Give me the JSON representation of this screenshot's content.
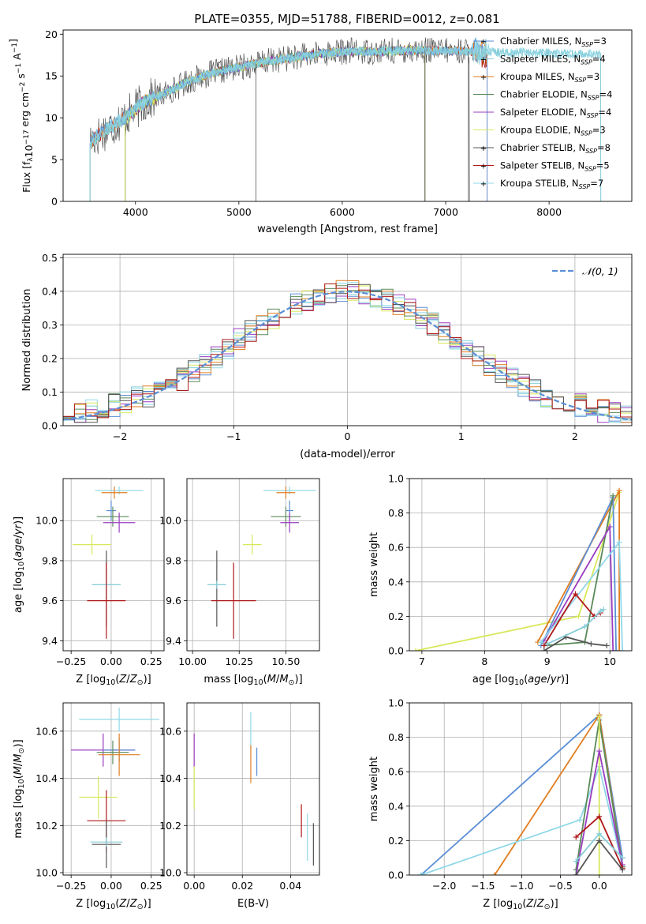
{
  "figure_title": "PLATE=0355, MJD=51788, FIBERID=0012, z=0.081",
  "colors": {
    "Chabrier MILES": "#5b8fd6",
    "Salpeter MILES": "#86cdd8",
    "Kroupa MILES": "#e07d20",
    "Chabrier ELODIE": "#5a8a5a",
    "Salpeter ELODIE": "#9a3cc0",
    "Kroupa ELODIE": "#d7e85a",
    "Chabrier STELIB": "#555555",
    "Salpeter STELIB": "#b01818",
    "Kroupa STELIB": "#8fd8e8",
    "grid": "#b0b0b0",
    "normal_curve": "#5b8fd6"
  },
  "chart_data": [
    {
      "id": "spectrum",
      "type": "line",
      "xlabel": "wavelength [Angstrom, rest frame]",
      "ylabel": "Flux [f_λ10^-17 erg cm^-2 s^-1 A^-1]",
      "xlim": [
        3300,
        8800
      ],
      "ylim": [
        0,
        20.5
      ],
      "xticks": [
        4000,
        5000,
        6000,
        7000,
        8000
      ],
      "yticks": [
        0,
        5,
        10,
        15,
        20
      ],
      "grid": false,
      "legend_position": "right",
      "legend": [
        {
          "name": "Chabrier MILES",
          "nssp": "3"
        },
        {
          "name": "Salpeter MILES",
          "nssp": "4"
        },
        {
          "name": "Kroupa MILES",
          "nssp": "3"
        },
        {
          "name": "Chabrier ELODIE",
          "nssp": "4"
        },
        {
          "name": "Salpeter ELODIE",
          "nssp": "4"
        },
        {
          "name": "Kroupa ELODIE",
          "nssp": "3"
        },
        {
          "name": "Chabrier STELIB",
          "nssp": "8"
        },
        {
          "name": "Salpeter STELIB",
          "nssp": "5"
        },
        {
          "name": "Kroupa STELIB",
          "nssp": "7"
        }
      ],
      "continuum": {
        "x": [
          3550,
          3700,
          3900,
          4100,
          4300,
          4500,
          4700,
          4900,
          5100,
          5300,
          5500,
          5700,
          5900,
          6100,
          6300,
          6500,
          6700,
          6900,
          7100,
          7300,
          7500,
          7800,
          8100,
          8400
        ],
        "y": [
          7.0,
          8.5,
          10.0,
          12.0,
          13.0,
          14.3,
          15.2,
          15.8,
          16.3,
          16.8,
          17.2,
          17.5,
          17.8,
          18.0,
          17.9,
          18.0,
          18.1,
          18.0,
          18.0,
          17.9,
          17.8,
          17.8,
          17.7,
          17.6
        ]
      }
    },
    {
      "id": "residuals",
      "type": "line",
      "xlabel": "(data-model)/error",
      "ylabel": "Normed distribution",
      "xlim": [
        -2.5,
        2.5
      ],
      "ylim": [
        0,
        0.51
      ],
      "xticks": [
        -2,
        -1,
        0,
        1,
        2
      ],
      "xticklabels": [
        "−2",
        "−1",
        "0",
        "1",
        "2"
      ],
      "yticks": [
        0.0,
        0.1,
        0.2,
        0.3,
        0.4,
        0.5
      ],
      "grid": true,
      "legend_position": "top-right",
      "normal_label": "𝒩(0, 1)",
      "bin_width": 0.1
    },
    {
      "id": "age-vs-Z",
      "type": "errorbar",
      "xlabel": "Z [log10(Z/Z⊙)]",
      "ylabel": "age [log10(age/yr)]",
      "xlim": [
        -0.3,
        0.33
      ],
      "ylim": [
        9.35,
        10.21
      ],
      "xticks": [
        -0.25,
        0.0,
        0.25
      ],
      "xticklabels": [
        "−0.25",
        "0.00",
        "0.25"
      ],
      "yticks": [
        9.4,
        9.6,
        9.8,
        10.0
      ],
      "grid": true,
      "points": [
        {
          "series": "Kroupa STELIB",
          "x": 0.05,
          "xerr": 0.15,
          "y": 10.15,
          "yerr": 0.02
        },
        {
          "series": "Kroupa MILES",
          "x": 0.02,
          "xerr": 0.08,
          "y": 10.14,
          "yerr": 0.03
        },
        {
          "series": "Chabrier MILES",
          "x": 0.0,
          "xerr": 0.03,
          "y": 10.05,
          "yerr": 0.05
        },
        {
          "series": "Chabrier ELODIE",
          "x": 0.01,
          "xerr": 0.1,
          "y": 10.02,
          "yerr": 0.05
        },
        {
          "series": "Salpeter ELODIE",
          "x": 0.05,
          "xerr": 0.1,
          "y": 9.99,
          "yerr": 0.05
        },
        {
          "series": "Kroupa ELODIE",
          "x": -0.12,
          "xerr": 0.12,
          "y": 9.88,
          "yerr": 0.05
        },
        {
          "series": "Chabrier STELIB",
          "x": -0.03,
          "xerr": 0.0,
          "y": 9.66,
          "yerr": 0.19
        },
        {
          "series": "Salpeter MILES",
          "x": -0.03,
          "xerr": 0.09,
          "y": 9.68,
          "yerr": 0.02
        },
        {
          "series": "Salpeter STELIB",
          "x": -0.03,
          "xerr": 0.12,
          "y": 9.6,
          "yerr": 0.19
        }
      ]
    },
    {
      "id": "age-vs-mass",
      "type": "errorbar",
      "xlabel": "mass [log10(M/M⊙)]",
      "xlim": [
        9.97,
        10.68
      ],
      "ylim": [
        9.35,
        10.21
      ],
      "xticks": [
        10.0,
        10.25,
        10.5
      ],
      "xticklabels": [
        "10.00",
        "10.25",
        "10.50"
      ],
      "yticks": [
        9.4,
        9.6,
        9.8,
        10.0
      ],
      "grid": true,
      "points": [
        {
          "series": "Kroupa STELIB",
          "x": 10.52,
          "xerr": 0.14,
          "y": 10.15,
          "yerr": 0.02
        },
        {
          "series": "Kroupa MILES",
          "x": 10.5,
          "xerr": 0.05,
          "y": 10.14,
          "yerr": 0.03
        },
        {
          "series": "Chabrier MILES",
          "x": 10.52,
          "xerr": 0.02,
          "y": 10.05,
          "yerr": 0.05
        },
        {
          "series": "Chabrier ELODIE",
          "x": 10.5,
          "xerr": 0.08,
          "y": 10.02,
          "yerr": 0.05
        },
        {
          "series": "Salpeter ELODIE",
          "x": 10.52,
          "xerr": 0.05,
          "y": 9.99,
          "yerr": 0.05
        },
        {
          "series": "Kroupa ELODIE",
          "x": 10.32,
          "xerr": 0.05,
          "y": 9.88,
          "yerr": 0.05
        },
        {
          "series": "Chabrier STELIB",
          "x": 10.13,
          "xerr": 0.0,
          "y": 9.66,
          "yerr": 0.19
        },
        {
          "series": "Salpeter MILES",
          "x": 10.13,
          "xerr": 0.05,
          "y": 9.68,
          "yerr": 0.02
        },
        {
          "series": "Salpeter STELIB",
          "x": 10.22,
          "xerr": 0.12,
          "y": 9.6,
          "yerr": 0.19
        }
      ]
    },
    {
      "id": "weight-vs-age",
      "type": "line",
      "xlabel": "age [log10(age/yr)]",
      "ylabel": "mass weight",
      "xlim": [
        6.8,
        10.35
      ],
      "ylim": [
        0,
        1.0
      ],
      "xticks": [
        7,
        8,
        9,
        10
      ],
      "yticks": [
        0.0,
        0.2,
        0.4,
        0.6,
        0.8,
        1.0
      ],
      "grid": true,
      "series": [
        {
          "name": "Kroupa ELODIE",
          "x": [
            6.9,
            9.5,
            10.15
          ],
          "y": [
            0.0,
            0.2,
            0.92
          ]
        },
        {
          "name": "Kroupa MILES",
          "x": [
            8.85,
            10.15,
            10.15
          ],
          "y": [
            0.05,
            0.93,
            0.0
          ]
        },
        {
          "name": "Chabrier MILES",
          "x": [
            8.9,
            10.05,
            10.1
          ],
          "y": [
            0.03,
            0.89,
            0.0
          ]
        },
        {
          "name": "Chabrier ELODIE",
          "x": [
            8.95,
            9.6,
            10.05
          ],
          "y": [
            0.03,
            0.05,
            0.9
          ]
        },
        {
          "name": "Salpeter ELODIE",
          "x": [
            8.95,
            10.0,
            10.05
          ],
          "y": [
            0.06,
            0.72,
            0.0
          ]
        },
        {
          "name": "Kroupa STELIB",
          "x": [
            8.9,
            10.15,
            10.2
          ],
          "y": [
            0.05,
            0.63,
            0.0
          ]
        },
        {
          "name": "Salpeter STELIB",
          "x": [
            8.95,
            9.45,
            9.75,
            9.85
          ],
          "y": [
            0.03,
            0.33,
            0.2,
            0.22
          ]
        },
        {
          "name": "Chabrier STELIB",
          "x": [
            8.95,
            9.3,
            9.7,
            9.95
          ],
          "y": [
            0.0,
            0.08,
            0.04,
            0.03
          ]
        },
        {
          "name": "Salpeter MILES",
          "x": [
            9.0,
            9.6,
            9.85,
            9.9
          ],
          "y": [
            0.04,
            0.14,
            0.23,
            0.24
          ]
        }
      ]
    },
    {
      "id": "mass-vs-Z",
      "type": "errorbar",
      "xlabel": "Z [log10(Z/Z⊙)]",
      "ylabel": "mass [log10(M/M⊙)]",
      "xlim": [
        -0.3,
        0.33
      ],
      "ylim": [
        9.99,
        10.72
      ],
      "xticks": [
        -0.25,
        0.0,
        0.25
      ],
      "xticklabels": [
        "−0.25",
        "0.00",
        "0.25"
      ],
      "yticks": [
        10.0,
        10.2,
        10.4,
        10.6
      ],
      "grid": true,
      "points": [
        {
          "series": "Kroupa STELIB",
          "x": 0.05,
          "xerr": 0.25,
          "y": 10.65,
          "yerr": 0.05
        },
        {
          "series": "Salpeter ELODIE",
          "x": -0.05,
          "xerr": 0.2,
          "y": 10.52,
          "yerr": 0.07
        },
        {
          "series": "Chabrier MILES",
          "x": 0.05,
          "xerr": 0.1,
          "y": 10.52,
          "yerr": 0.05
        },
        {
          "series": "Chabrier ELODIE",
          "x": 0.01,
          "xerr": 0.1,
          "y": 10.51,
          "yerr": 0.05
        },
        {
          "series": "Kroupa MILES",
          "x": 0.05,
          "xerr": 0.13,
          "y": 10.5,
          "yerr": 0.09
        },
        {
          "series": "Kroupa ELODIE",
          "x": -0.08,
          "xerr": 0.12,
          "y": 10.32,
          "yerr": 0.09
        },
        {
          "series": "Salpeter STELIB",
          "x": -0.03,
          "xerr": 0.12,
          "y": 10.22,
          "yerr": 0.13
        },
        {
          "series": "Chabrier STELIB",
          "x": -0.03,
          "xerr": 0.09,
          "y": 10.12,
          "yerr": 0.1
        },
        {
          "series": "Salpeter MILES",
          "x": -0.03,
          "xerr": 0.1,
          "y": 10.13,
          "yerr": 0.02
        }
      ]
    },
    {
      "id": "mass-vs-EBV",
      "type": "errorbar",
      "xlabel": "E(B-V)",
      "xlim": [
        -0.003,
        0.052
      ],
      "ylim": [
        9.99,
        10.72
      ],
      "xticks": [
        0.0,
        0.02,
        0.04
      ],
      "xticklabels": [
        "0.00",
        "0.02",
        "0.04"
      ],
      "yticks": [
        10.0,
        10.2,
        10.4,
        10.6
      ],
      "grid": true,
      "points": [
        {
          "series": "Kroupa STELIB",
          "x": 0.0235,
          "xerr": 0.0,
          "y": 10.6,
          "yerr": 0.08
        },
        {
          "series": "Salpeter ELODIE",
          "x": 0.0,
          "xerr": 0.0,
          "y": 10.52,
          "yerr": 0.07
        },
        {
          "series": "Chabrier MILES",
          "x": 0.026,
          "xerr": 0.0,
          "y": 10.47,
          "yerr": 0.06
        },
        {
          "series": "Kroupa MILES",
          "x": 0.0235,
          "xerr": 0.0,
          "y": 10.46,
          "yerr": 0.08
        },
        {
          "series": "Kroupa ELODIE",
          "x": 0.0,
          "xerr": 0.0,
          "y": 10.36,
          "yerr": 0.09
        },
        {
          "series": "Salpeter STELIB",
          "x": 0.0445,
          "xerr": 0.0,
          "y": 10.22,
          "yerr": 0.07
        },
        {
          "series": "Kroupa STELIB",
          "x": 0.047,
          "xerr": 0.0,
          "y": 10.15,
          "yerr": 0.1
        },
        {
          "series": "Chabrier STELIB",
          "x": 0.0495,
          "xerr": 0.0,
          "y": 10.12,
          "yerr": 0.09
        }
      ]
    },
    {
      "id": "weight-vs-Z",
      "type": "line",
      "xlabel": "Z [log10(Z/Z⊙)]",
      "ylabel": "mass weight",
      "xlim": [
        -2.45,
        0.42
      ],
      "ylim": [
        0,
        1.0
      ],
      "xticks": [
        -2.0,
        -1.5,
        -1.0,
        -0.5,
        0.0
      ],
      "xticklabels": [
        "−2.0",
        "−1.5",
        "−1.0",
        "−0.5",
        "0.0"
      ],
      "yticks": [
        0.0,
        0.2,
        0.4,
        0.6,
        0.8,
        1.0
      ],
      "grid": true,
      "series": [
        {
          "name": "Chabrier MILES",
          "x": [
            -2.3,
            0.0,
            0.3
          ],
          "y": [
            0.0,
            0.93,
            0.1
          ]
        },
        {
          "name": "Kroupa MILES",
          "x": [
            -1.35,
            0.0,
            0.3
          ],
          "y": [
            0.0,
            0.93,
            0.05
          ]
        },
        {
          "name": "Kroupa STELIB",
          "x": [
            -2.3,
            -0.25,
            0.0,
            0.3
          ],
          "y": [
            0.0,
            0.32,
            0.63,
            0.05
          ]
        },
        {
          "name": "Chabrier ELODIE",
          "x": [
            -0.3,
            0.0,
            0.3
          ],
          "y": [
            0.03,
            0.9,
            0.05
          ]
        },
        {
          "name": "Kroupa ELODIE",
          "x": [
            0.0,
            0.0
          ],
          "y": [
            0.0,
            0.92
          ]
        },
        {
          "name": "Salpeter ELODIE",
          "x": [
            -0.3,
            0.0,
            0.3
          ],
          "y": [
            0.0,
            0.72,
            0.06
          ]
        },
        {
          "name": "Salpeter STELIB",
          "x": [
            -0.3,
            0.0,
            0.3
          ],
          "y": [
            0.22,
            0.34,
            0.04
          ]
        },
        {
          "name": "Chabrier STELIB",
          "x": [
            -0.3,
            0.0,
            0.3
          ],
          "y": [
            0.0,
            0.2,
            0.03
          ]
        },
        {
          "name": "Salpeter MILES",
          "x": [
            -0.3,
            0.0,
            0.3
          ],
          "y": [
            0.08,
            0.24,
            0.1
          ]
        }
      ]
    }
  ]
}
